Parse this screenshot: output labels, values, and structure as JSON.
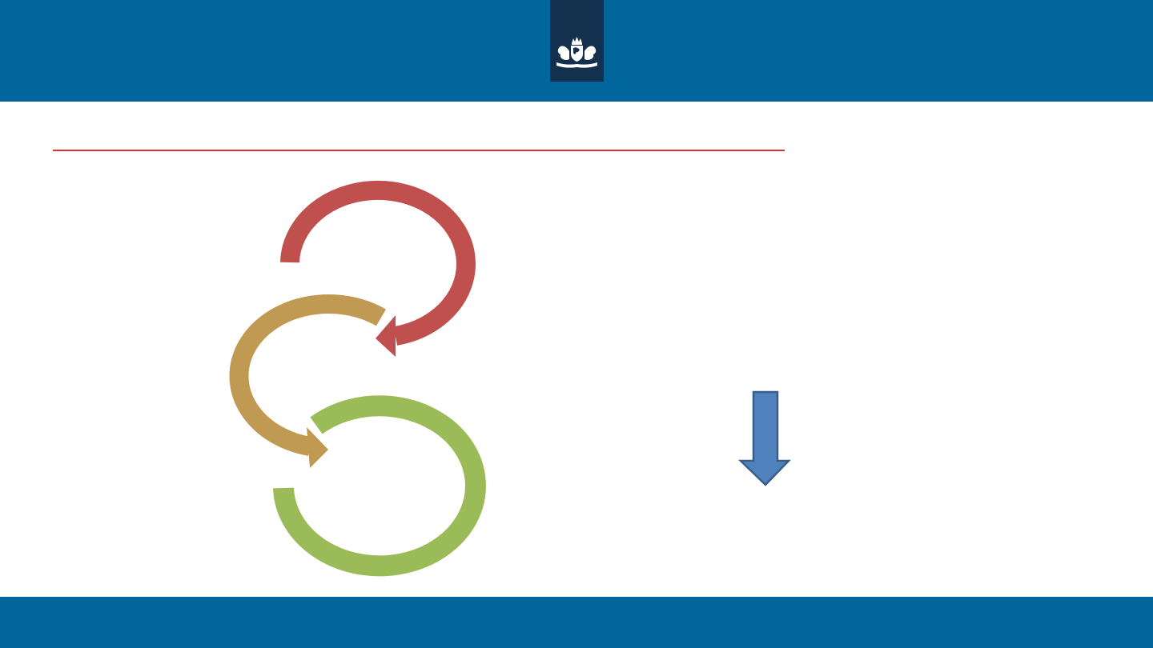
{
  "theme": {
    "header_color": "#00669b",
    "logo_block_color": "#14304f",
    "rule_color": "#d9352c",
    "footer_color": "#00669b"
  },
  "header": {
    "logo_icon": "royal-coat-of-arms-icon"
  },
  "diagram": {
    "cycles": [
      {
        "color": "#c0504d"
      },
      {
        "color": "#c09a52"
      },
      {
        "color": "#9bbb59"
      }
    ]
  },
  "side_arrow": {
    "fill": "#4f81bd",
    "stroke": "#385d8a",
    "icon": "down-arrow-icon"
  }
}
